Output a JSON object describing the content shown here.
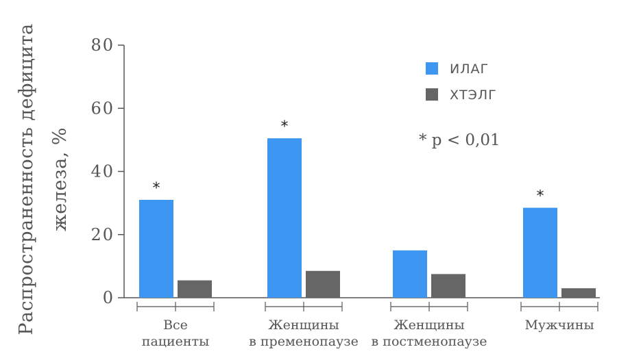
{
  "chart_data": {
    "type": "bar",
    "ylabel_lines": [
      "Распространенность дефицита",
      "железа, %"
    ],
    "ylim": [
      0,
      80
    ],
    "yticks": [
      0,
      20,
      40,
      60,
      80
    ],
    "categories": [
      [
        "Все",
        "пациенты"
      ],
      [
        "Женщины",
        "в пременопаузе"
      ],
      [
        "Женщины",
        "в постменопаузе"
      ],
      [
        "Мужчины"
      ]
    ],
    "series": [
      {
        "name": "ИЛАГ",
        "color": "#3d97f2",
        "values": [
          31,
          50.5,
          15,
          28.5
        ]
      },
      {
        "name": "ХТЭЛГ",
        "color": "#666666",
        "values": [
          5.5,
          8.5,
          7.5,
          3
        ]
      }
    ],
    "significance": [
      true,
      true,
      false,
      true
    ],
    "significance_mark": "*",
    "note": "* p < 0,01",
    "grid": false,
    "legend_position": "top-right"
  }
}
